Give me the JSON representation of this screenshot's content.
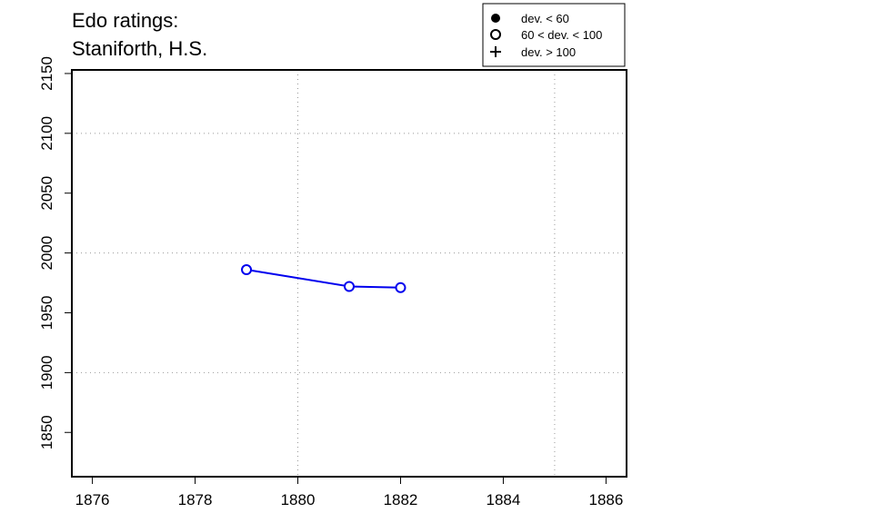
{
  "chart_data": {
    "type": "line",
    "title_lines": [
      "Edo ratings:",
      "Staniforth, H.S."
    ],
    "xlabel": "",
    "ylabel": "",
    "xlim": [
      1875.6,
      1886.4
    ],
    "ylim": [
      1813,
      2153
    ],
    "x_ticks": [
      1876,
      1878,
      1880,
      1882,
      1884,
      1886
    ],
    "y_ticks": [
      1850,
      1900,
      1950,
      2000,
      2050,
      2100,
      2150
    ],
    "grid_x": [
      1880,
      1885
    ],
    "grid_y": [
      1900,
      2000,
      2100
    ],
    "series": [
      {
        "color": "#0000ee",
        "marker": "open-circle",
        "points": [
          {
            "x": 1879,
            "y": 1986
          },
          {
            "x": 1881,
            "y": 1972
          },
          {
            "x": 1882,
            "y": 1971
          }
        ]
      }
    ],
    "legend": {
      "position": "top-right",
      "entries": [
        {
          "marker": "filled-circle",
          "label": "dev. < 60"
        },
        {
          "marker": "open-circle",
          "label": "60 < dev. < 100"
        },
        {
          "marker": "plus",
          "label": "dev. > 100"
        }
      ]
    }
  }
}
